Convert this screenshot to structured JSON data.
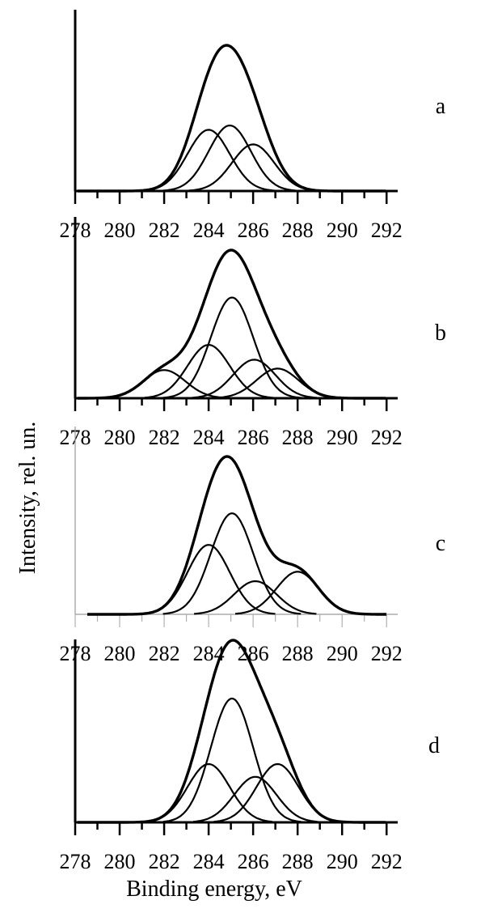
{
  "chart_data": {
    "type": "line",
    "ylabel": "Intensity, rel. un.",
    "xlabel": "Binding energy, eV",
    "xlim": [
      278,
      292
    ],
    "x_ticks": [
      "278",
      "280",
      "282",
      "284",
      "286",
      "288",
      "290",
      "292"
    ],
    "y_ticks_shown": false,
    "grid": false,
    "panels": [
      {
        "label": "a",
        "envelope_peak": 1.0,
        "components": [
          {
            "center": 284.0,
            "height": 0.42,
            "sigma": 0.95
          },
          {
            "center": 284.95,
            "height": 0.45,
            "sigma": 0.95
          },
          {
            "center": 286.0,
            "height": 0.32,
            "sigma": 0.95
          }
        ]
      },
      {
        "label": "b",
        "envelope_peak": 1.0,
        "components": [
          {
            "center": 282.0,
            "height": 0.19,
            "sigma": 0.95
          },
          {
            "center": 284.0,
            "height": 0.36,
            "sigma": 0.95
          },
          {
            "center": 285.05,
            "height": 0.68,
            "sigma": 0.95
          },
          {
            "center": 286.05,
            "height": 0.26,
            "sigma": 0.95
          },
          {
            "center": 287.1,
            "height": 0.2,
            "sigma": 0.95
          }
        ]
      },
      {
        "label": "c",
        "envelope_peak": 1.0,
        "components": [
          {
            "center": 284.0,
            "height": 0.44,
            "sigma": 0.95
          },
          {
            "center": 285.05,
            "height": 0.64,
            "sigma": 0.95
          },
          {
            "center": 286.1,
            "height": 0.21,
            "sigma": 0.95
          },
          {
            "center": 288.0,
            "height": 0.27,
            "sigma": 0.95
          }
        ]
      },
      {
        "label": "d",
        "envelope_peak": 1.0,
        "components": [
          {
            "center": 284.0,
            "height": 0.32,
            "sigma": 0.95
          },
          {
            "center": 285.05,
            "height": 0.68,
            "sigma": 0.95
          },
          {
            "center": 286.1,
            "height": 0.25,
            "sigma": 0.95
          },
          {
            "center": 287.1,
            "height": 0.32,
            "sigma": 0.95
          }
        ]
      }
    ]
  }
}
